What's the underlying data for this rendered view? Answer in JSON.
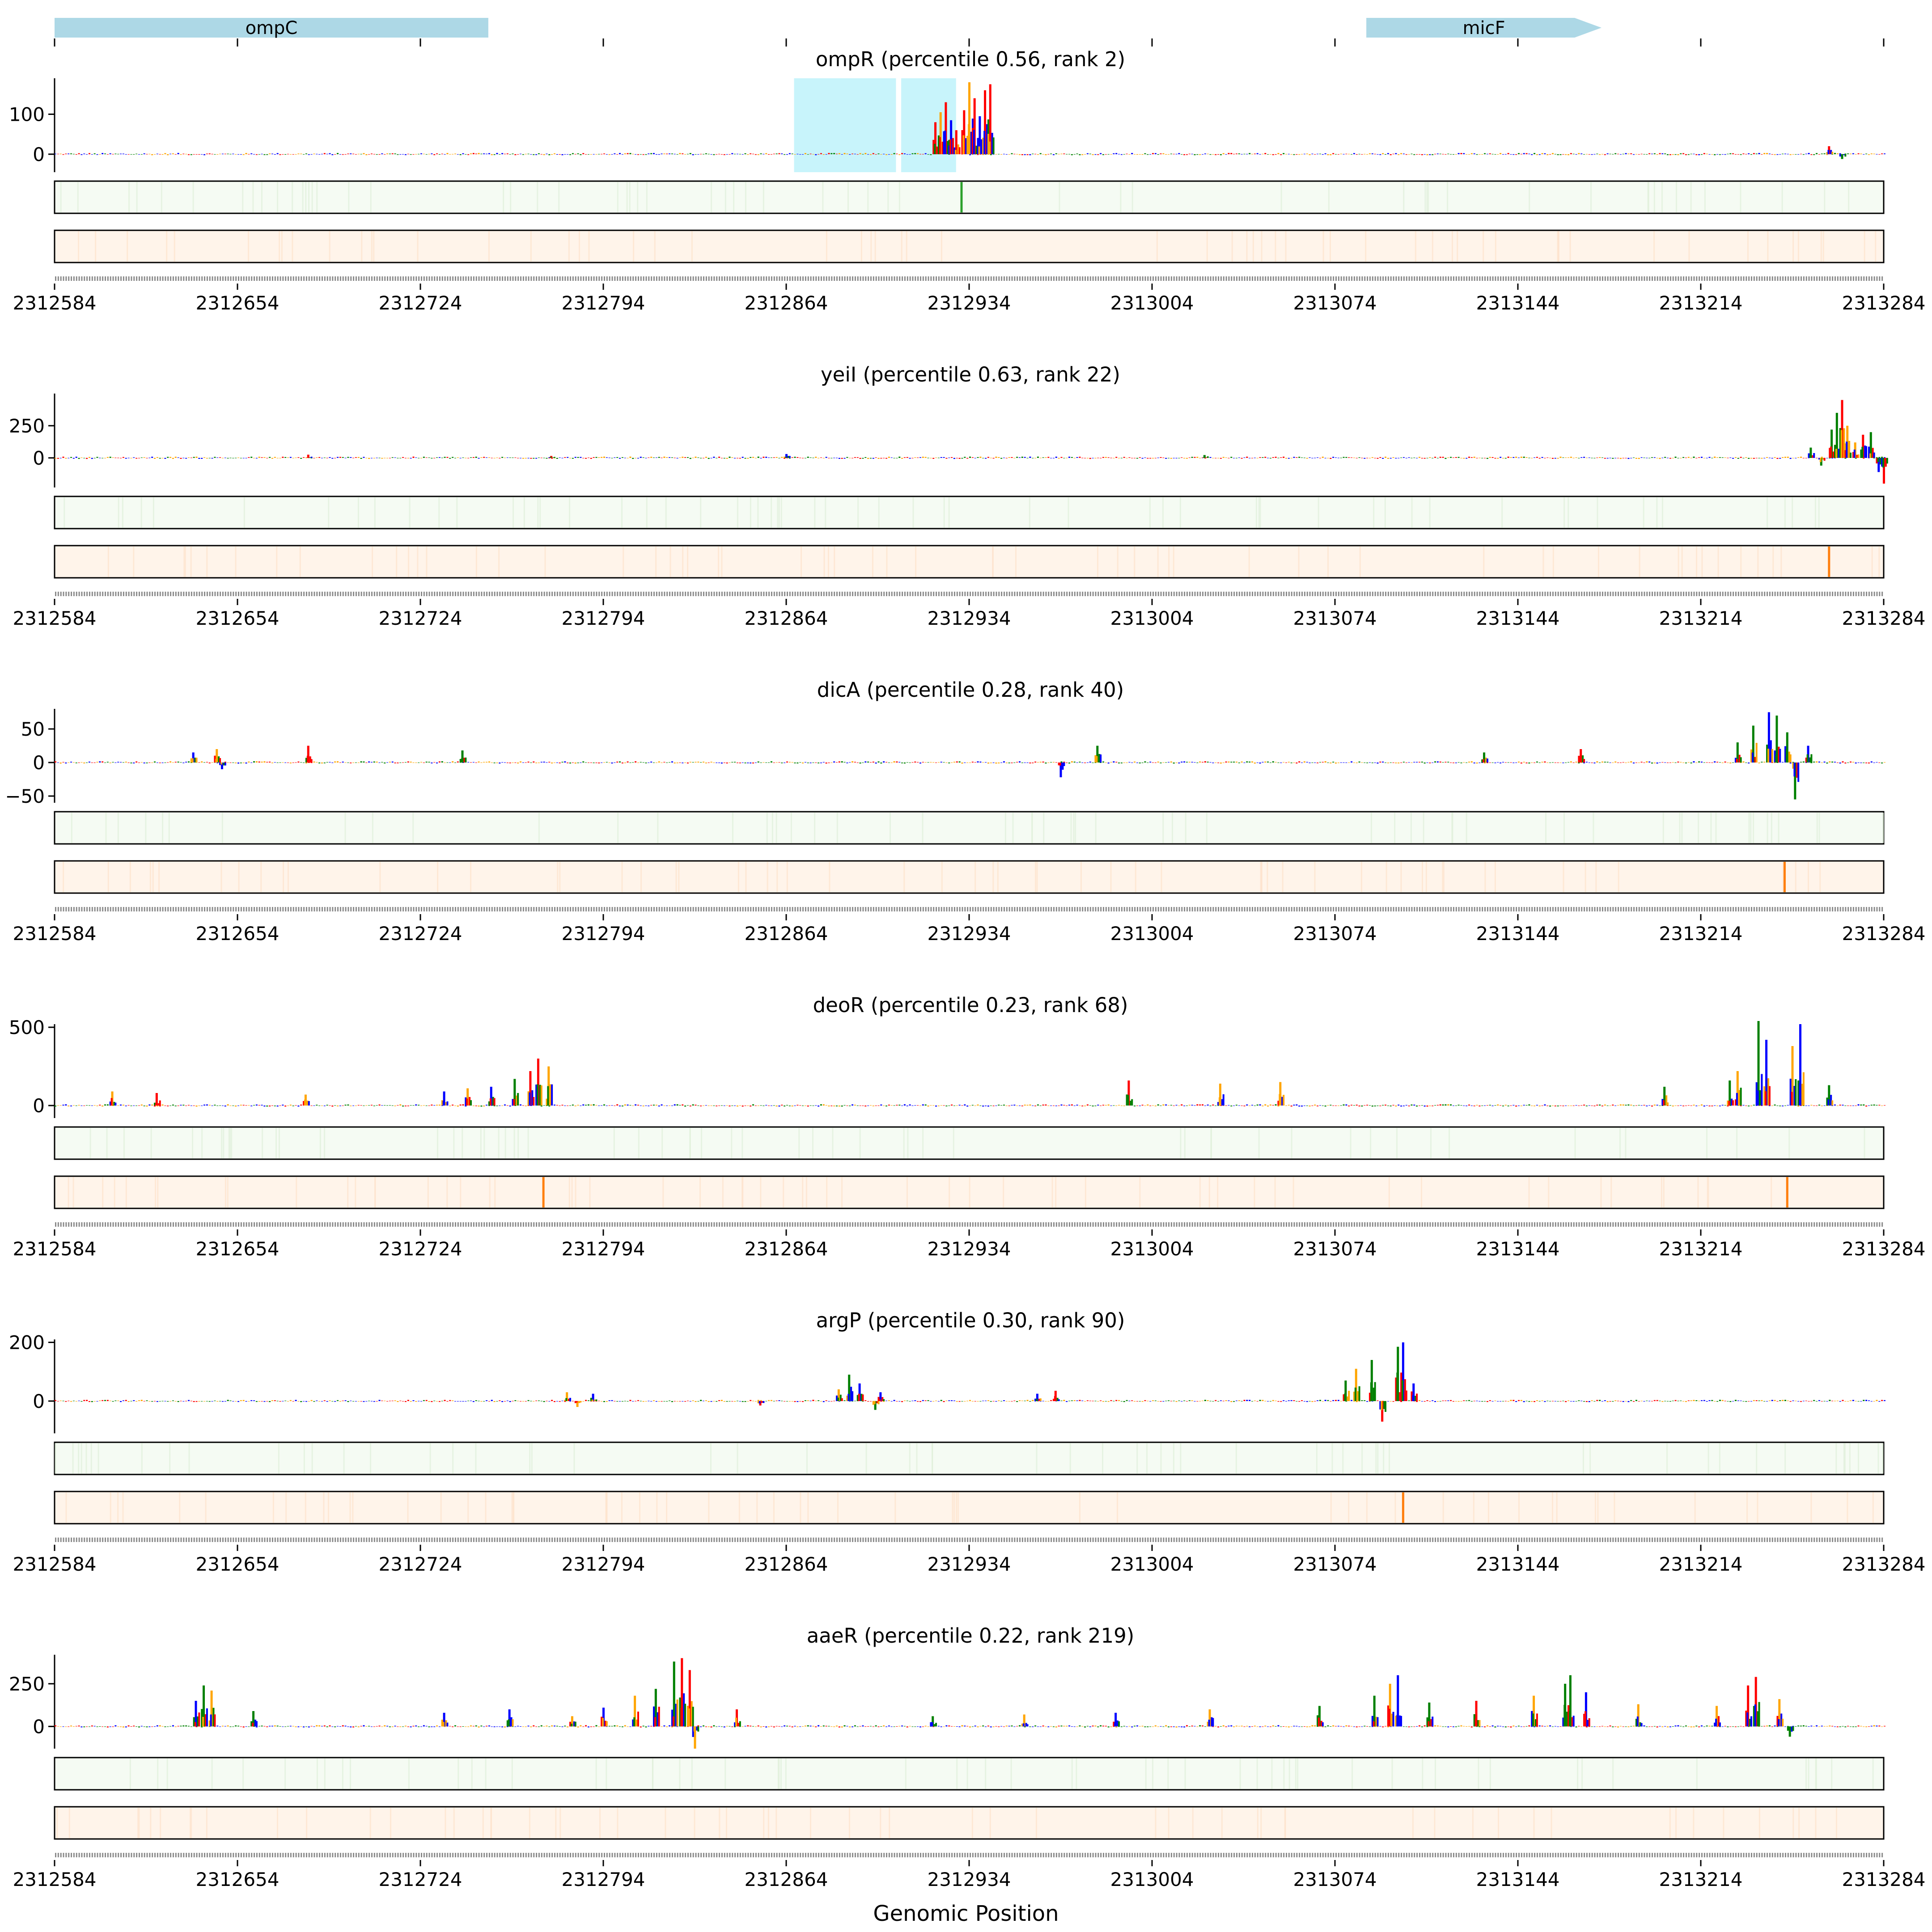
{
  "chart_data": {
    "type": "line",
    "xlabel": "Genomic Position",
    "xlim": [
      2312584,
      2313284
    ],
    "xticks": [
      "2312584",
      "2312654",
      "2312724",
      "2312794",
      "2312864",
      "2312934",
      "2313004",
      "2313074",
      "2313144",
      "2313214",
      "2313284"
    ],
    "genes": [
      {
        "name": "ompC",
        "start": 2312584,
        "end": 2312750,
        "strand": "-",
        "color": "#add8e6"
      },
      {
        "name": "micF",
        "start": 2313086,
        "end": 2313176,
        "strand": "+",
        "color": "#add8e6"
      }
    ],
    "colors": {
      "A": "#008000",
      "C": "#0000ff",
      "G": "#ffa500",
      "T": "#ff0000",
      "green_track": "#f5fbf3",
      "orange_track": "#fff4ea",
      "green_mark": "#2ca02c",
      "orange_mark": "#ff7f0e",
      "highlight": "#c8f4fb"
    },
    "panels": [
      {
        "factor": "ompR",
        "title": "ompR (percentile 0.56, rank 2)",
        "yticks": [
          "100",
          "0"
        ],
        "ytick_values": [
          100,
          0
        ],
        "ylim": [
          -45,
          190
        ],
        "highlights": [
          [
            2312867,
            2312906
          ],
          [
            2312908,
            2312929
          ]
        ],
        "green_marks": [
          2312931
        ],
        "orange_marks": [],
        "peaks": [
          [
            2312921,
            80
          ],
          [
            2312923,
            105
          ],
          [
            2312925,
            130
          ],
          [
            2312927,
            85
          ],
          [
            2312929,
            60
          ],
          [
            2312932,
            110
          ],
          [
            2312934,
            180
          ],
          [
            2312936,
            140
          ],
          [
            2312938,
            95
          ],
          [
            2312940,
            160
          ],
          [
            2312942,
            175
          ],
          [
            2313263,
            20
          ],
          [
            2313268,
            -12
          ]
        ]
      },
      {
        "factor": "yeiI",
        "title": "yeiI (percentile 0.63, rank 22)",
        "yticks": [
          "250",
          "0"
        ],
        "ytick_values": [
          250,
          0
        ],
        "ylim": [
          -230,
          500
        ],
        "highlights": [],
        "green_marks": [],
        "orange_marks": [
          2313263
        ],
        "peaks": [
          [
            2312681,
            25
          ],
          [
            2312774,
            15
          ],
          [
            2312864,
            30
          ],
          [
            2313024,
            22
          ],
          [
            2313256,
            80
          ],
          [
            2313260,
            -60
          ],
          [
            2313264,
            220
          ],
          [
            2313266,
            350
          ],
          [
            2313268,
            450
          ],
          [
            2313270,
            250
          ],
          [
            2313273,
            120
          ],
          [
            2313276,
            180
          ],
          [
            2313279,
            200
          ],
          [
            2313282,
            -110
          ],
          [
            2313284,
            -200
          ]
        ]
      },
      {
        "factor": "dicA",
        "title": "dicA (percentile 0.28, rank 40)",
        "yticks": [
          "50",
          "0",
          "−50"
        ],
        "ytick_values": [
          50,
          0,
          -50
        ],
        "ylim": [
          -60,
          80
        ],
        "highlights": [],
        "green_marks": [],
        "orange_marks": [
          2313246
        ],
        "peaks": [
          [
            2312637,
            15
          ],
          [
            2312646,
            20
          ],
          [
            2312648,
            -10
          ],
          [
            2312681,
            25
          ],
          [
            2312740,
            18
          ],
          [
            2312969,
            -22
          ],
          [
            2312983,
            25
          ],
          [
            2313131,
            15
          ],
          [
            2313168,
            20
          ],
          [
            2313228,
            30
          ],
          [
            2313234,
            55
          ],
          [
            2313240,
            75
          ],
          [
            2313243,
            70
          ],
          [
            2313247,
            45
          ],
          [
            2313250,
            -55
          ],
          [
            2313255,
            25
          ]
        ]
      },
      {
        "factor": "deoR",
        "title": "deoR (percentile 0.23, rank 68)",
        "yticks": [
          "500",
          "0"
        ],
        "ytick_values": [
          500,
          0
        ],
        "ylim": [
          -80,
          520
        ],
        "highlights": [],
        "green_marks": [],
        "orange_marks": [
          2312771,
          2313247
        ],
        "peaks": [
          [
            2312606,
            90
          ],
          [
            2312623,
            80
          ],
          [
            2312680,
            70
          ],
          [
            2312733,
            90
          ],
          [
            2312742,
            110
          ],
          [
            2312751,
            120
          ],
          [
            2312760,
            170
          ],
          [
            2312766,
            220
          ],
          [
            2312769,
            300
          ],
          [
            2312773,
            250
          ],
          [
            2312995,
            160
          ],
          [
            2313030,
            140
          ],
          [
            2313053,
            150
          ],
          [
            2313200,
            120
          ],
          [
            2313225,
            160
          ],
          [
            2313228,
            220
          ],
          [
            2313236,
            540
          ],
          [
            2313239,
            420
          ],
          [
            2313249,
            380
          ],
          [
            2313252,
            520
          ],
          [
            2313263,
            130
          ]
        ]
      },
      {
        "factor": "argP",
        "title": "argP (percentile 0.30, rank 90)",
        "yticks": [
          "200",
          "0"
        ],
        "ytick_values": [
          200,
          0
        ],
        "ylim": [
          -110,
          210
        ],
        "highlights": [],
        "green_marks": [],
        "orange_marks": [
          2313100
        ],
        "peaks": [
          [
            2312780,
            30
          ],
          [
            2312784,
            -20
          ],
          [
            2312790,
            25
          ],
          [
            2312854,
            -15
          ],
          [
            2312884,
            40
          ],
          [
            2312888,
            90
          ],
          [
            2312892,
            60
          ],
          [
            2312898,
            -30
          ],
          [
            2312900,
            30
          ],
          [
            2312960,
            25
          ],
          [
            2312967,
            35
          ],
          [
            2313078,
            70
          ],
          [
            2313082,
            110
          ],
          [
            2313088,
            140
          ],
          [
            2313092,
            -70
          ],
          [
            2313098,
            185
          ],
          [
            2313100,
            200
          ],
          [
            2313104,
            60
          ]
        ]
      },
      {
        "factor": "aaeR",
        "title": "aaeR (percentile 0.22, rank 219)",
        "yticks": [
          "250",
          "0"
        ],
        "ytick_values": [
          250,
          0
        ],
        "ylim": [
          -130,
          420
        ],
        "highlights": [],
        "green_marks": [],
        "orange_marks": [],
        "peaks": [
          [
            2312638,
            150
          ],
          [
            2312641,
            240
          ],
          [
            2312644,
            210
          ],
          [
            2312660,
            90
          ],
          [
            2312733,
            80
          ],
          [
            2312758,
            100
          ],
          [
            2312782,
            60
          ],
          [
            2312794,
            110
          ],
          [
            2312806,
            180
          ],
          [
            2312814,
            220
          ],
          [
            2312821,
            380
          ],
          [
            2312824,
            400
          ],
          [
            2312827,
            330
          ],
          [
            2312829,
            -130
          ],
          [
            2312845,
            100
          ],
          [
            2312920,
            60
          ],
          [
            2312955,
            70
          ],
          [
            2312990,
            80
          ],
          [
            2313026,
            100
          ],
          [
            2313068,
            120
          ],
          [
            2313089,
            180
          ],
          [
            2313095,
            250
          ],
          [
            2313098,
            300
          ],
          [
            2313110,
            140
          ],
          [
            2313128,
            150
          ],
          [
            2313150,
            180
          ],
          [
            2313162,
            250
          ],
          [
            2313164,
            300
          ],
          [
            2313170,
            200
          ],
          [
            2313190,
            130
          ],
          [
            2313220,
            120
          ],
          [
            2313232,
            240
          ],
          [
            2313235,
            290
          ],
          [
            2313244,
            160
          ],
          [
            2313248,
            -60
          ]
        ]
      }
    ]
  }
}
